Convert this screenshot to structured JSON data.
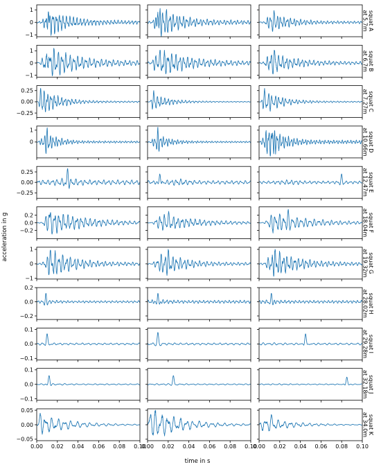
{
  "chart_data": {
    "type": "line",
    "layout": "small multiples grid: 11 rows (squats) x 3 columns (recordings), columns share x axis, rows share y axis",
    "xlabel": "time in s",
    "ylabel": "acceleration in g",
    "xlim": [
      0.0,
      0.1
    ],
    "xticks": [
      0.0,
      0.02,
      0.04,
      0.06,
      0.08,
      0.1
    ],
    "xtick_labels": [
      "0.00",
      "0.02",
      "0.04",
      "0.06",
      "0.08",
      "0.10"
    ],
    "series_color": "#1f77b4",
    "columns": 3,
    "rows": [
      {
        "label_line1": "squat A",
        "label_line2": "at 5.7m",
        "ylim": [
          -1.15,
          1.4
        ],
        "yticks": [
          -1,
          0,
          1
        ],
        "ytick_labels": [
          "−1",
          "0",
          "1"
        ],
        "peaks": [
          {
            "t": 0.011,
            "v": 1.05
          },
          {
            "t": 0.01,
            "v": 1.3
          },
          {
            "t": 0.015,
            "v": 0.95
          }
        ],
        "env": {
          "type": "impulse",
          "t0": 0.005,
          "tp": 0.012,
          "decay": 0.018,
          "base": 0.12
        },
        "freq": 290
      },
      {
        "label_line1": "squat B",
        "label_line2": "at 6.7m",
        "ylim": [
          -1.15,
          1.45
        ],
        "yticks": [
          -1,
          0,
          1
        ],
        "ytick_labels": [
          "−1",
          "0",
          "1"
        ],
        "peaks": [
          {
            "t": 0.011,
            "v": 1.2
          },
          {
            "t": 0.011,
            "v": 1.05
          },
          {
            "t": 0.015,
            "v": 1.05
          }
        ],
        "env": {
          "type": "impulse",
          "t0": 0.004,
          "tp": 0.011,
          "decay": 0.024,
          "base": 0.12
        },
        "freq": 250
      },
      {
        "label_line1": "squat C",
        "label_line2": "at 7.27m",
        "ylim": [
          -0.35,
          0.36
        ],
        "yticks": [
          -0.25,
          0.0,
          0.25
        ],
        "ytick_labels": [
          "−0.25",
          "0.00",
          "0.25"
        ],
        "peaks": [
          {
            "t": 0.004,
            "v": 0.3
          },
          {
            "t": 0.006,
            "v": 0.25
          },
          {
            "t": 0.005,
            "v": 0.3
          }
        ],
        "env": {
          "type": "impulse",
          "t0": 0.002,
          "tp": 0.006,
          "decay": 0.017,
          "base": 0.05
        },
        "freq": 280
      },
      {
        "label_line1": "squat D",
        "label_line2": "at 10.66m",
        "ylim": [
          -1.35,
          1.35
        ],
        "yticks": [
          0,
          1
        ],
        "ytick_labels": [
          "0",
          "1"
        ],
        "peaks": [
          {
            "t": 0.01,
            "v": 1.2
          },
          {
            "t": 0.01,
            "v": 1.25
          },
          {
            "t": 0.013,
            "v": 1.2
          }
        ],
        "env": {
          "type": "impulse",
          "t0": 0.002,
          "tp": 0.01,
          "decay": 0.012,
          "base": 0.1
        },
        "freq": 340
      },
      {
        "label_line1": "squat E",
        "label_line2": "at 12.47m",
        "ylim": [
          -0.38,
          0.38
        ],
        "yticks": [
          -0.25,
          0.0,
          0.25
        ],
        "ytick_labels": [
          "−0.25",
          "0.00",
          "0.25"
        ],
        "peaks": [
          {
            "t": 0.03,
            "v": 0.33
          },
          {
            "t": 0.012,
            "v": 0.2
          },
          {
            "t": 0.08,
            "v": 0.2
          }
        ],
        "env": {
          "type": "flat",
          "level": 0.14,
          "burst_t": 0.03,
          "burst": 0.12
        },
        "freq": 210
      },
      {
        "label_line1": "squat F",
        "label_line2": "at 18.04m",
        "ylim": [
          -0.42,
          0.42
        ],
        "yticks": [
          -0.2,
          0.0,
          0.2
        ],
        "ytick_labels": [
          "−0.2",
          "0.0",
          "0.2"
        ],
        "peaks": [
          {
            "t": 0.012,
            "v": 0.3
          },
          {
            "t": 0.02,
            "v": 0.3
          },
          {
            "t": 0.028,
            "v": 0.35
          }
        ],
        "env": {
          "type": "impulse",
          "t0": 0.005,
          "tp": 0.013,
          "decay": 0.035,
          "base": 0.06
        },
        "freq": 220
      },
      {
        "label_line1": "squat G",
        "label_line2": "at 19.32m",
        "ylim": [
          -1.05,
          1.15
        ],
        "yticks": [
          -1,
          0,
          1
        ],
        "ytick_labels": [
          "−1",
          "0",
          "1"
        ],
        "peaks": [
          {
            "t": 0.013,
            "v": 0.95
          },
          {
            "t": 0.02,
            "v": 1.0
          },
          {
            "t": 0.015,
            "v": 1.0
          }
        ],
        "env": {
          "type": "impulse",
          "t0": 0.005,
          "tp": 0.015,
          "decay": 0.022,
          "base": 0.1
        },
        "freq": 250
      },
      {
        "label_line1": "squat H",
        "label_line2": "at 28.02m",
        "ylim": [
          -0.25,
          0.2
        ],
        "yticks": [
          -0.2,
          0.0,
          0.2
        ],
        "ytick_labels": [
          "−0.2",
          "0.0",
          "0.2"
        ],
        "peaks": [
          {
            "t": 0.009,
            "v": 0.12
          },
          {
            "t": 0.01,
            "v": 0.12
          },
          {
            "t": 0.012,
            "v": 0.12
          }
        ],
        "env": {
          "type": "flat",
          "level": 0.11,
          "burst_t": 0.012,
          "burst": 0.05
        },
        "freq": 260
      },
      {
        "label_line1": "squat I",
        "label_line2": "at 29.28m",
        "ylim": [
          -0.11,
          0.11
        ],
        "yticks": [
          -0.1,
          0.0,
          0.1
        ],
        "ytick_labels": [
          "−0.1",
          "0.0",
          "0.1"
        ],
        "peaks": [
          {
            "t": 0.01,
            "v": 0.07
          },
          {
            "t": 0.01,
            "v": 0.08
          },
          {
            "t": 0.045,
            "v": 0.07
          }
        ],
        "env": {
          "type": "flat",
          "level": 0.065,
          "burst_t": 0.01,
          "burst": 0.02
        },
        "freq": 170
      },
      {
        "label_line1": "squat J",
        "label_line2": "at 32.18m",
        "ylim": [
          -0.11,
          0.11
        ],
        "yticks": [
          -0.1,
          0.0,
          0.1
        ],
        "ytick_labels": [
          "−0.1",
          "0.0",
          "0.1"
        ],
        "peaks": [
          {
            "t": 0.012,
            "v": 0.06
          },
          {
            "t": 0.025,
            "v": 0.06
          },
          {
            "t": 0.085,
            "v": 0.05
          }
        ],
        "env": {
          "type": "flat",
          "level": 0.05,
          "burst_t": 0.02,
          "burst": 0.02
        },
        "freq": 160
      },
      {
        "label_line1": "squat K",
        "label_line2": "at 34.0m",
        "ylim": [
          -0.055,
          0.055
        ],
        "yticks": [
          -0.05,
          0.0,
          0.05
        ],
        "ytick_labels": [
          "−0.05",
          "0.00",
          "0.05"
        ],
        "peaks": [
          {
            "t": 0.004,
            "v": 0.04
          },
          {
            "t": 0.003,
            "v": 0.05
          },
          {
            "t": 0.012,
            "v": 0.035
          }
        ],
        "env": {
          "type": "impulse",
          "t0": 0.0,
          "tp": 0.004,
          "decay": 0.03,
          "base": 0.012
        },
        "freq": 150
      }
    ]
  }
}
